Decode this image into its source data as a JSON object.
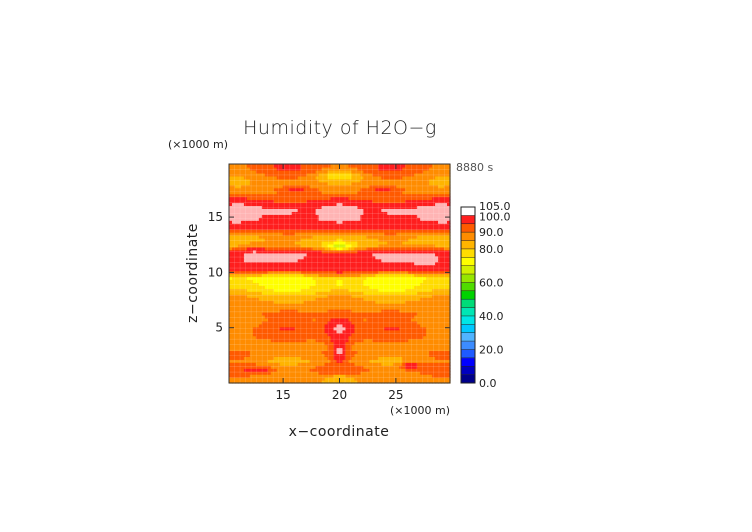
{
  "chart_data": {
    "type": "heatmap",
    "title": "Humidity of H2O−g",
    "xlabel": "x−coordinate",
    "ylabel": "z−coordinate",
    "x_unit": "(×1000 m)",
    "y_unit": "(×1000 m)",
    "time_label": "8880 s",
    "xlim": [
      10.2,
      29.8
    ],
    "ylim": [
      0,
      19.8
    ],
    "x_ticks": [
      15,
      20,
      25
    ],
    "y_ticks": [
      5,
      10,
      15
    ],
    "x_tick_labels": [
      "15",
      "20",
      "25"
    ],
    "y_tick_labels": [
      "5",
      "10",
      "15"
    ],
    "colorbar": {
      "labels": [
        "105.0",
        "100.0",
        "90.0",
        "80.0",
        "60.0",
        "40.0",
        "20.0",
        "0.0"
      ],
      "label_values": [
        105,
        100,
        90,
        80,
        60,
        40,
        20,
        0
      ],
      "bounds": [
        0,
        5,
        10,
        15,
        20,
        25,
        30,
        35,
        40,
        45,
        50,
        55,
        60,
        65,
        70,
        75,
        80,
        85,
        90,
        95,
        100,
        105
      ],
      "colors": [
        "#00008b",
        "#0000c0",
        "#0000ff",
        "#1e5aff",
        "#3c8cff",
        "#50b4ff",
        "#00c8ff",
        "#00e6e6",
        "#00e6b4",
        "#00dc78",
        "#00d200",
        "#50dc00",
        "#96e600",
        "#d2f000",
        "#ffff00",
        "#ffdc00",
        "#ffb400",
        "#ff8c00",
        "#ff5a00",
        "#ff1e1e",
        "#ffb4b4"
      ]
    },
    "z_levels": [
      {
        "z": 0.0,
        "v": 85
      },
      {
        "z": 0.6,
        "v": 88
      },
      {
        "z": 1.3,
        "v": 91
      },
      {
        "z": 2.0,
        "v": 86
      },
      {
        "z": 2.7,
        "v": 89
      },
      {
        "z": 3.4,
        "v": 87
      },
      {
        "z": 4.2,
        "v": 91
      },
      {
        "z": 5.0,
        "v": 92
      },
      {
        "z": 5.7,
        "v": 89
      },
      {
        "z": 6.3,
        "v": 90
      },
      {
        "z": 7.0,
        "v": 87
      },
      {
        "z": 7.8,
        "v": 84
      },
      {
        "z": 8.3,
        "v": 78
      },
      {
        "z": 9.0,
        "v": 74
      },
      {
        "z": 9.6,
        "v": 72
      },
      {
        "z": 10.2,
        "v": 96
      },
      {
        "z": 11.0,
        "v": 99
      },
      {
        "z": 11.8,
        "v": 99
      },
      {
        "z": 12.5,
        "v": 81
      },
      {
        "z": 13.2,
        "v": 84
      },
      {
        "z": 14.0,
        "v": 96
      },
      {
        "z": 14.8,
        "v": 99
      },
      {
        "z": 15.6,
        "v": 99
      },
      {
        "z": 16.4,
        "v": 96
      },
      {
        "z": 17.2,
        "v": 89
      },
      {
        "z": 17.8,
        "v": 86
      },
      {
        "z": 18.5,
        "v": 87
      },
      {
        "z": 19.2,
        "v": 92
      },
      {
        "z": 19.8,
        "v": 93
      }
    ],
    "x_variation": 0.35,
    "blobs": [
      {
        "x": 20.0,
        "z": 5.0,
        "rx": 1.9,
        "rz": 1.7,
        "v": 101
      },
      {
        "x": 20.0,
        "z": 3.0,
        "rx": 0.8,
        "rz": 1.6,
        "v": 101
      },
      {
        "x": 12.3,
        "z": 11.5,
        "rx": 2.3,
        "rz": 1.3,
        "v": 101
      },
      {
        "x": 27.7,
        "z": 11.3,
        "rx": 2.4,
        "rz": 1.3,
        "v": 101
      },
      {
        "x": 20.0,
        "z": 10.6,
        "rx": 3.6,
        "rz": 1.2,
        "v": 97
      },
      {
        "x": 14.5,
        "z": 15.6,
        "rx": 5.0,
        "rz": 0.8,
        "v": 101
      },
      {
        "x": 25.5,
        "z": 15.6,
        "rx": 5.0,
        "rz": 0.8,
        "v": 101
      },
      {
        "x": 20.0,
        "z": 18.8,
        "rx": 2.2,
        "rz": 0.5,
        "v": 76
      },
      {
        "x": 20.0,
        "z": 12.4,
        "rx": 1.3,
        "rz": 0.4,
        "v": 66
      },
      {
        "x": 20.0,
        "z": 9.1,
        "rx": 1.2,
        "rz": 0.5,
        "v": 74
      },
      {
        "x": 20.0,
        "z": 0.4,
        "rx": 1.6,
        "rz": 0.5,
        "v": 80
      },
      {
        "x": 12.8,
        "z": 1.2,
        "rx": 1.4,
        "rz": 0.4,
        "v": 99
      },
      {
        "x": 26.3,
        "z": 1.6,
        "rx": 1.2,
        "rz": 0.4,
        "v": 99
      },
      {
        "x": 16.2,
        "z": 17.5,
        "rx": 2.2,
        "rz": 0.5,
        "v": 96
      },
      {
        "x": 23.8,
        "z": 17.5,
        "rx": 2.2,
        "rz": 0.5,
        "v": 96
      }
    ]
  }
}
